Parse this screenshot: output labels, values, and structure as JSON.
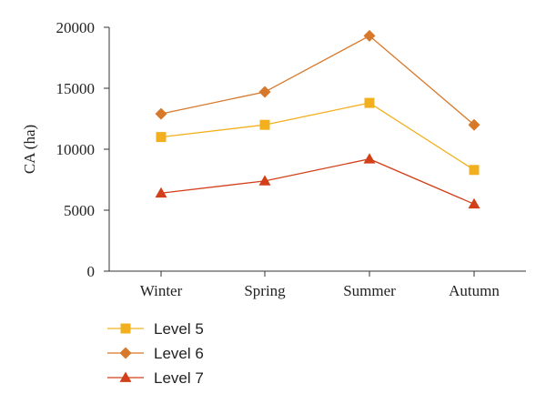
{
  "chart_data": {
    "type": "line",
    "categories": [
      "Winter",
      "Spring",
      "Summer",
      "Autumn"
    ],
    "ylabel": "CA (ha)",
    "xlabel": "",
    "ylim": [
      0,
      20000
    ],
    "yticks": [
      0,
      5000,
      10000,
      15000,
      20000
    ],
    "ytick_labels": [
      "0",
      "5000",
      "10000",
      "15000",
      "20000"
    ],
    "grid": false,
    "legend_position": "bottom-left",
    "series": [
      {
        "name": "Level 5",
        "marker": "square",
        "color": "#f2b01e",
        "values": [
          11000,
          12000,
          13800,
          8300
        ]
      },
      {
        "name": "Level 6",
        "marker": "diamond",
        "color": "#d8782a",
        "values": [
          12900,
          14700,
          19300,
          12000
        ]
      },
      {
        "name": "Level 7",
        "marker": "triangle",
        "color": "#d2401a",
        "values": [
          6400,
          7400,
          9200,
          5500
        ]
      }
    ]
  }
}
